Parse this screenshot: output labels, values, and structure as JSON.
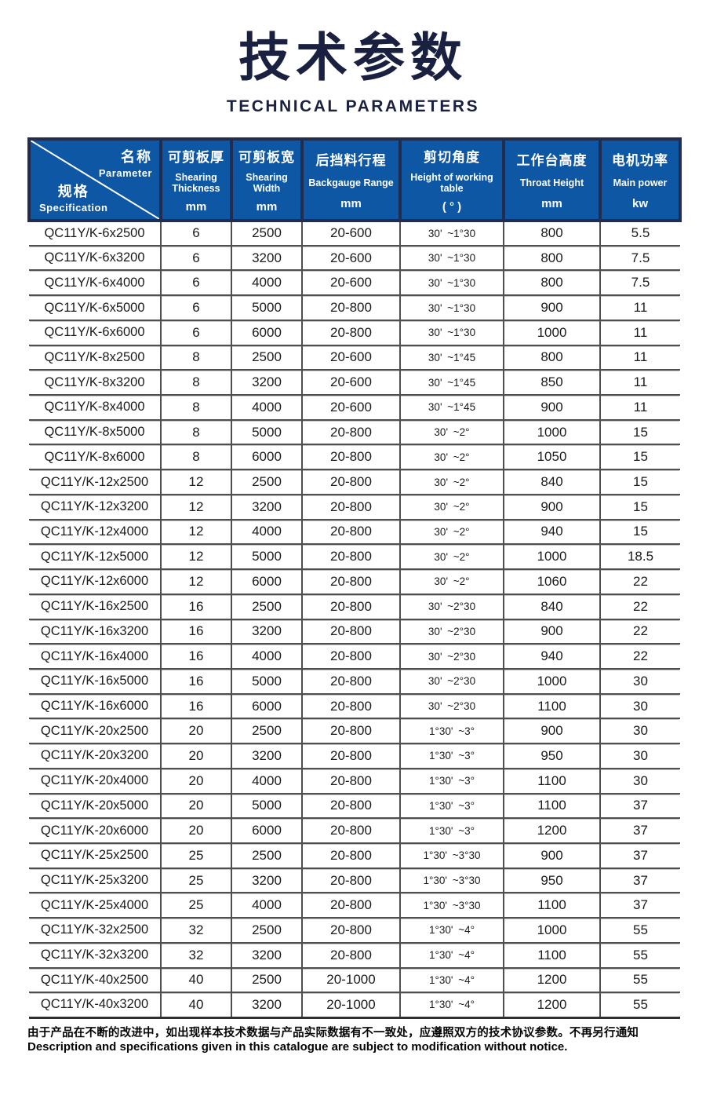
{
  "page": {
    "title_cn": "技术参数",
    "title_en": "TECHNICAL PARAMETERS"
  },
  "colors": {
    "header_bg": "#0e57a5",
    "header_border": "#222c4d",
    "title_navy": "#1a2140",
    "row_line": "#4f4f4f"
  },
  "table": {
    "corner": {
      "top_cn": "名称",
      "top_en": "Parameter",
      "bottom_cn": "规格",
      "bottom_en": "Specification"
    },
    "columns": [
      {
        "cn": "可剪板厚",
        "en": "Shearing Thickness",
        "unit": "mm"
      },
      {
        "cn": "可剪板宽",
        "en": "Shearing Width",
        "unit": "mm"
      },
      {
        "cn": "后挡料行程",
        "en": "Backgauge Range",
        "unit": "mm"
      },
      {
        "cn": "剪切角度",
        "en": "Height of working table",
        "unit": "(  °  )"
      },
      {
        "cn": "工作台高度",
        "en": "Throat Height",
        "unit": "mm"
      },
      {
        "cn": "电机功率",
        "en": "Main power",
        "unit": "kw"
      }
    ],
    "rows": [
      [
        "QC11Y/K-6x2500",
        "6",
        "2500",
        "20-600",
        "30' ~1°30",
        "800",
        "5.5"
      ],
      [
        "QC11Y/K-6x3200",
        "6",
        "3200",
        "20-600",
        "30' ~1°30",
        "800",
        "7.5"
      ],
      [
        "QC11Y/K-6x4000",
        "6",
        "4000",
        "20-600",
        "30' ~1°30",
        "800",
        "7.5"
      ],
      [
        "QC11Y/K-6x5000",
        "6",
        "5000",
        "20-800",
        "30' ~1°30",
        "900",
        "11"
      ],
      [
        "QC11Y/K-6x6000",
        "6",
        "6000",
        "20-800",
        "30' ~1°30",
        "1000",
        "11"
      ],
      [
        "QC11Y/K-8x2500",
        "8",
        "2500",
        "20-600",
        "30' ~1°45",
        "800",
        "11"
      ],
      [
        "QC11Y/K-8x3200",
        "8",
        "3200",
        "20-600",
        "30' ~1°45",
        "850",
        "11"
      ],
      [
        "QC11Y/K-8x4000",
        "8",
        "4000",
        "20-600",
        "30' ~1°45",
        "900",
        "11"
      ],
      [
        "QC11Y/K-8x5000",
        "8",
        "5000",
        "20-800",
        "30' ~2°",
        "1000",
        "15"
      ],
      [
        "QC11Y/K-8x6000",
        "8",
        "6000",
        "20-800",
        "30' ~2°",
        "1050",
        "15"
      ],
      [
        "QC11Y/K-12x2500",
        "12",
        "2500",
        "20-800",
        "30' ~2°",
        "840",
        "15"
      ],
      [
        "QC11Y/K-12x3200",
        "12",
        "3200",
        "20-800",
        "30' ~2°",
        "900",
        "15"
      ],
      [
        "QC11Y/K-12x4000",
        "12",
        "4000",
        "20-800",
        "30' ~2°",
        "940",
        "15"
      ],
      [
        "QC11Y/K-12x5000",
        "12",
        "5000",
        "20-800",
        "30' ~2°",
        "1000",
        "18.5"
      ],
      [
        "QC11Y/K-12x6000",
        "12",
        "6000",
        "20-800",
        "30' ~2°",
        "1060",
        "22"
      ],
      [
        "QC11Y/K-16x2500",
        "16",
        "2500",
        "20-800",
        "30' ~2°30",
        "840",
        "22"
      ],
      [
        "QC11Y/K-16x3200",
        "16",
        "3200",
        "20-800",
        "30' ~2°30",
        "900",
        "22"
      ],
      [
        "QC11Y/K-16x4000",
        "16",
        "4000",
        "20-800",
        "30' ~2°30",
        "940",
        "22"
      ],
      [
        "QC11Y/K-16x5000",
        "16",
        "5000",
        "20-800",
        "30' ~2°30",
        "1000",
        "30"
      ],
      [
        "QC11Y/K-16x6000",
        "16",
        "6000",
        "20-800",
        "30' ~2°30",
        "1100",
        "30"
      ],
      [
        "QC11Y/K-20x2500",
        "20",
        "2500",
        "20-800",
        "1°30' ~3°",
        "900",
        "30"
      ],
      [
        "QC11Y/K-20x3200",
        "20",
        "3200",
        "20-800",
        "1°30' ~3°",
        "950",
        "30"
      ],
      [
        "QC11Y/K-20x4000",
        "20",
        "4000",
        "20-800",
        "1°30' ~3°",
        "1100",
        "30"
      ],
      [
        "QC11Y/K-20x5000",
        "20",
        "5000",
        "20-800",
        "1°30' ~3°",
        "1100",
        "37"
      ],
      [
        "QC11Y/K-20x6000",
        "20",
        "6000",
        "20-800",
        "1°30' ~3°",
        "1200",
        "37"
      ],
      [
        "QC11Y/K-25x2500",
        "25",
        "2500",
        "20-800",
        "1°30' ~3°30",
        "900",
        "37"
      ],
      [
        "QC11Y/K-25x3200",
        "25",
        "3200",
        "20-800",
        "1°30' ~3°30",
        "950",
        "37"
      ],
      [
        "QC11Y/K-25x4000",
        "25",
        "4000",
        "20-800",
        "1°30' ~3°30",
        "1100",
        "37"
      ],
      [
        "QC11Y/K-32x2500",
        "32",
        "2500",
        "20-800",
        "1°30' ~4°",
        "1000",
        "55"
      ],
      [
        "QC11Y/K-32x3200",
        "32",
        "3200",
        "20-800",
        "1°30' ~4°",
        "1100",
        "55"
      ],
      [
        "QC11Y/K-40x2500",
        "40",
        "2500",
        "20-1000",
        "1°30' ~4°",
        "1200",
        "55"
      ],
      [
        "QC11Y/K-40x3200",
        "40",
        "3200",
        "20-1000",
        "1°30' ~4°",
        "1200",
        "55"
      ]
    ]
  },
  "footer": {
    "line_cn": "由于产品在不断的改进中，如出现样本技术数据与产品实际数据有不一致处，应遵照双方的技术协议参数。不再另行通知",
    "line_en": "Description and specifications given in this catalogue are subject to modification without notice."
  }
}
